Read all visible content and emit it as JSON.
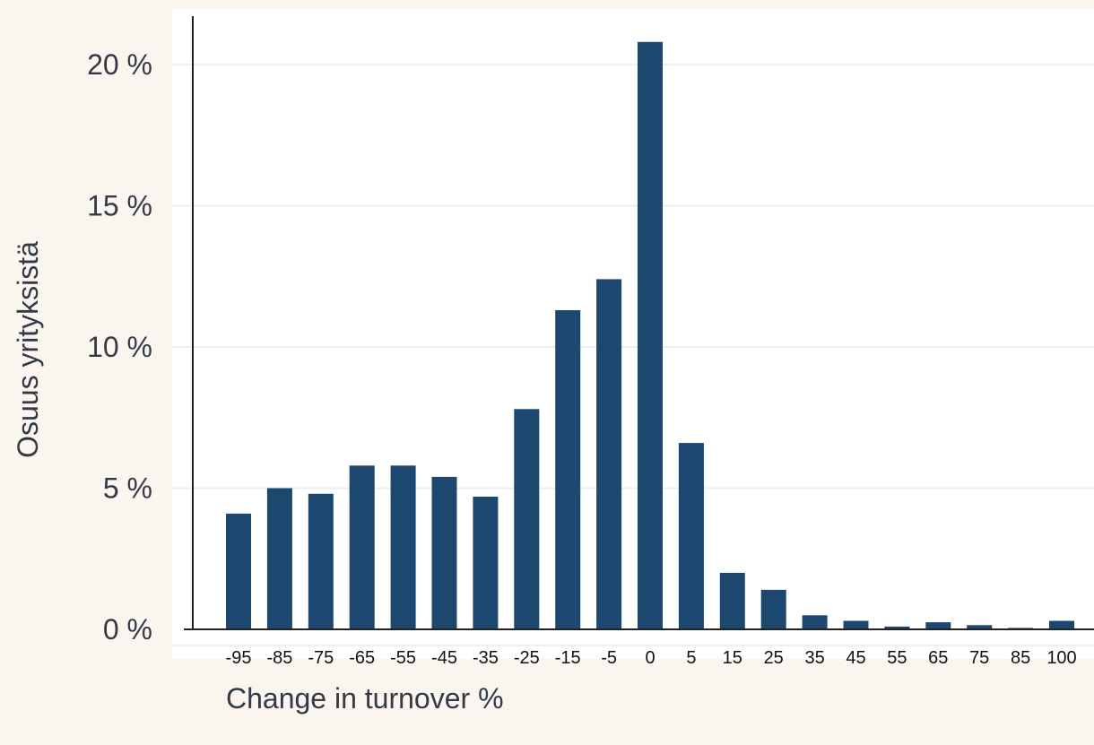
{
  "chart_data": {
    "type": "bar",
    "xlabel": "Change in turnover %",
    "ylabel": "Osuus yrityksistä",
    "categories": [
      "-95",
      "-85",
      "-75",
      "-65",
      "-55",
      "-45",
      "-35",
      "-25",
      "-15",
      "-5",
      "0",
      "5",
      "15",
      "25",
      "35",
      "45",
      "55",
      "65",
      "75",
      "85",
      "100"
    ],
    "values": [
      4.1,
      5.0,
      4.8,
      5.8,
      5.8,
      5.4,
      4.7,
      7.8,
      11.3,
      12.4,
      20.8,
      6.6,
      2.0,
      1.4,
      0.5,
      0.3,
      0.1,
      0.25,
      0.15,
      0.05,
      0.3
    ],
    "ylim": [
      0,
      20
    ],
    "yticks": [
      0,
      5,
      10,
      15,
      20
    ],
    "ytick_labels": [
      "0 %",
      "5 %",
      "10 %",
      "15 %",
      "20 %"
    ],
    "grid": true,
    "colors": {
      "bar": "#1c4870",
      "grid": "#e9f0f0",
      "axis": "#222222",
      "plot_bg": "#ffffff",
      "page_bg": "#faf5ef"
    }
  }
}
